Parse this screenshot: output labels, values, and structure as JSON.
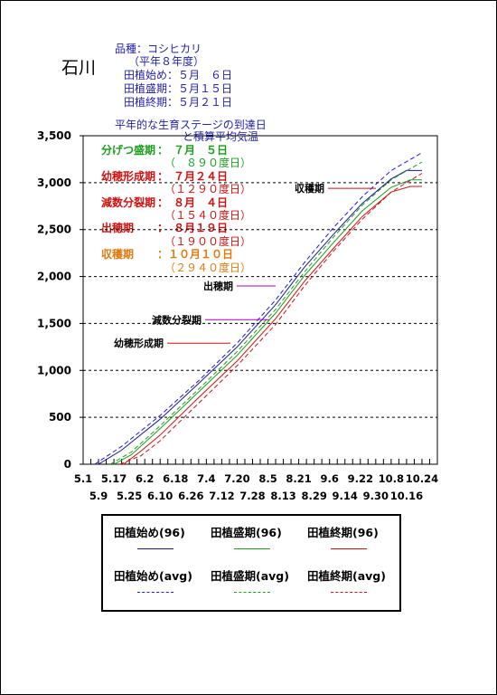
{
  "header": {
    "prefecture": "石川",
    "variety": "品種：コシヒカリ",
    "year": "（平年８年度）",
    "planting": [
      "田植始め：５月　６日",
      "田植盛期：５月１５日",
      "田植終期：５月２１日"
    ]
  },
  "stage_table": {
    "title_line1": "平年的な生育ステージの到達日",
    "title_line2": "と積算平均気温",
    "rows": [
      {
        "label": "分げつ盛期",
        "date": "：　７月　５日",
        "accum": "（　８９０度日）",
        "color": "#1a9e1a"
      },
      {
        "label": "幼穂形成期",
        "date": "：　７月２４日",
        "accum": "（１２９０度日）",
        "color": "#d01010"
      },
      {
        "label": "減数分裂期",
        "date": "：　８月　４日",
        "accum": "（１５４０度日）",
        "color": "#d01010"
      },
      {
        "label": "出穂期",
        "date": "：　８月１９日",
        "accum": "（１９００度日）",
        "color": "#d01010"
      },
      {
        "label": "収穫期",
        "date": "：１０月１０日",
        "accum": "（２９４０度日）",
        "color": "#e07a10"
      }
    ]
  },
  "annotations": [
    {
      "label": "収穫期",
      "value": 2940,
      "x0": 2.71,
      "x1": 3.24,
      "color": "#d01010"
    },
    {
      "label": "出穂期",
      "value": 1900,
      "x0": 1.7,
      "x1": 2.13,
      "color": "#b000b0"
    },
    {
      "label": "減数分裂期",
      "value": 1540,
      "x0": 1.35,
      "x1": 2.06,
      "color": "#b000b0"
    },
    {
      "label": "幼穂形成期",
      "value": 1290,
      "x0": 0.93,
      "x1": 1.63,
      "color": "#d01010"
    }
  ],
  "legend": [
    {
      "label": "田植始め(96)",
      "color": "#1a1a8c",
      "dash": false
    },
    {
      "label": "田植盛期(96)",
      "color": "#1a9e1a",
      "dash": false
    },
    {
      "label": "田植終期(96)",
      "color": "#d01010",
      "dash": false
    },
    {
      "label": "田植始め(avg)",
      "color": "#1a1adc",
      "dash": true
    },
    {
      "label": "田植盛期(avg)",
      "color": "#1a9e1a",
      "dash": true
    },
    {
      "label": "田植終期(avg)",
      "color": "#d01010",
      "dash": true
    }
  ],
  "chart_data": {
    "type": "line",
    "title": "",
    "xlabel": "",
    "ylabel": "",
    "ylim": [
      0,
      3500
    ],
    "yticks": [
      0,
      500,
      1000,
      1500,
      2000,
      2500,
      3000,
      3500
    ],
    "ytick_labels": [
      "0",
      "500",
      "1,000",
      "1,500",
      "2,000",
      "2,500",
      "3,000",
      "3,500"
    ],
    "xticks_row1": [
      "5.1",
      "5.17",
      "6.2",
      "6.18",
      "7.4",
      "7.20",
      "8.5",
      "8.21",
      "9.6",
      "9.22",
      "10.8",
      "10.24"
    ],
    "xticks_row2": [
      "5.9",
      "5.25",
      "6.10",
      "6.26",
      "7.12",
      "7.28",
      "8.13",
      "8.29",
      "9.14",
      "9.30",
      "10.16"
    ],
    "x_units": "days from 5.1",
    "xlim": [
      0,
      184
    ],
    "grid": "horizontal dashed",
    "series": [
      {
        "name": "田植始め(96)",
        "color": "#1a1a8c",
        "dash": false,
        "x": [
          8,
          20,
          40,
          60,
          80,
          100,
          115,
          130,
          145,
          160,
          168,
          176
        ],
        "y": [
          0,
          150,
          480,
          860,
          1250,
          1700,
          2100,
          2450,
          2780,
          3040,
          3130,
          3130
        ]
      },
      {
        "name": "田植盛期(96)",
        "color": "#1a9e1a",
        "dash": false,
        "x": [
          16,
          25,
          40,
          60,
          80,
          100,
          115,
          130,
          145,
          160,
          170,
          176
        ],
        "y": [
          0,
          100,
          380,
          770,
          1160,
          1610,
          2010,
          2360,
          2700,
          2950,
          3030,
          3030
        ]
      },
      {
        "name": "田植終期(96)",
        "color": "#d01010",
        "dash": false,
        "x": [
          21,
          30,
          40,
          60,
          80,
          100,
          115,
          130,
          145,
          160,
          170,
          176
        ],
        "y": [
          0,
          140,
          310,
          710,
          1100,
          1550,
          1950,
          2300,
          2640,
          2900,
          2960,
          2960
        ]
      },
      {
        "name": "田植始め(avg)",
        "color": "#1a1adc",
        "dash": true,
        "x": [
          6,
          20,
          40,
          60,
          80,
          100,
          115,
          130,
          145,
          160,
          176
        ],
        "y": [
          0,
          190,
          520,
          890,
          1290,
          1750,
          2150,
          2520,
          2850,
          3130,
          3320
        ]
      },
      {
        "name": "田植盛期(avg)",
        "color": "#1a9e1a",
        "dash": true,
        "x": [
          14,
          25,
          40,
          60,
          80,
          100,
          115,
          130,
          145,
          160,
          176
        ],
        "y": [
          0,
          130,
          410,
          800,
          1200,
          1650,
          2050,
          2420,
          2760,
          3030,
          3220
        ]
      },
      {
        "name": "田植終期(avg)",
        "color": "#d01010",
        "dash": true,
        "x": [
          19,
          30,
          40,
          60,
          80,
          100,
          115,
          130,
          145,
          160,
          176
        ],
        "y": [
          0,
          90,
          250,
          650,
          1050,
          1490,
          1900,
          2270,
          2610,
          2900,
          3100
        ]
      }
    ]
  }
}
